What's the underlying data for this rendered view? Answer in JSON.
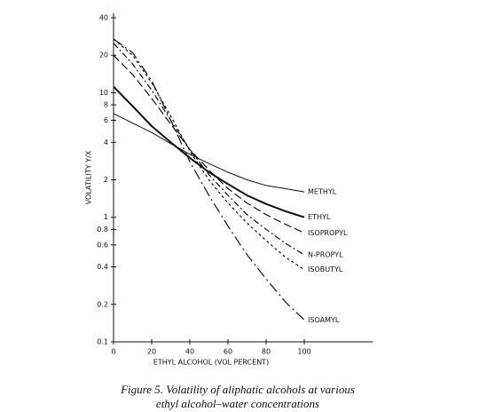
{
  "chart_data": {
    "type": "line",
    "x_label": "ETHYL ALCOHOL  (VOL PERCENT)",
    "y_label": "VOLATILITY   Y/X",
    "caption": [
      "Figure 5.  Volatility of aliphatic alcohols at various",
      "ethyl alcohol–water concentrations"
    ],
    "x": [
      0,
      10,
      20,
      30,
      40,
      50,
      60,
      70,
      80,
      90,
      100
    ],
    "xlim": [
      0,
      100
    ],
    "xticks": [
      0,
      20,
      40,
      60,
      80,
      100
    ],
    "ylim": [
      0.1,
      40
    ],
    "yticks": [
      0.1,
      0.2,
      0.4,
      0.6,
      0.8,
      1,
      2,
      4,
      6,
      8,
      10,
      20,
      40
    ],
    "y_scale": "log",
    "grid": false,
    "series": [
      {
        "name": "METHYL",
        "color": "#111111",
        "dash": "solid",
        "width": 1,
        "values": [
          6.8,
          5.7,
          4.8,
          3.9,
          3.2,
          2.7,
          2.3,
          2.0,
          1.8,
          1.7,
          1.6
        ]
      },
      {
        "name": "ETHYL",
        "color": "#111111",
        "dash": "solid",
        "width": 2,
        "values": [
          11.2,
          7.8,
          5.4,
          4.0,
          3.0,
          2.3,
          1.85,
          1.5,
          1.28,
          1.12,
          1.0
        ]
      },
      {
        "name": "ISOPROPYL",
        "color": "#111111",
        "dash": "long-dash",
        "width": 1.2,
        "values": [
          20,
          14,
          9,
          5.6,
          3.5,
          2.4,
          1.7,
          1.3,
          1.05,
          0.88,
          0.75
        ]
      },
      {
        "name": "N-PROPYL",
        "color": "#111111",
        "dash": "dash-dot",
        "width": 1.2,
        "values": [
          25,
          17,
          10.5,
          6,
          3.5,
          2.2,
          1.5,
          1.05,
          0.8,
          0.62,
          0.5
        ]
      },
      {
        "name": "ISOBUTYL",
        "color": "#111111",
        "dash": "short-dash",
        "width": 1.2,
        "values": [
          27,
          20,
          12,
          6.5,
          3.4,
          2.0,
          1.3,
          0.9,
          0.65,
          0.48,
          0.38
        ]
      },
      {
        "name": "ISOAMYL",
        "color": "#111111",
        "dash": "long-dash-dot",
        "width": 1.2,
        "values": [
          27,
          21,
          12.5,
          6,
          2.8,
          1.5,
          0.85,
          0.5,
          0.32,
          0.21,
          0.15
        ]
      }
    ]
  }
}
